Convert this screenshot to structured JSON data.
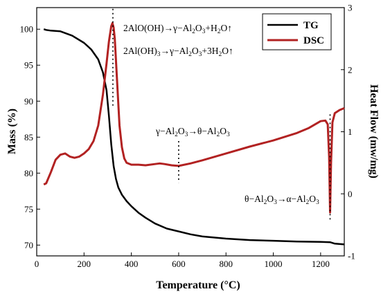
{
  "chart_data": {
    "type": "line",
    "xlabel": "Temperature (°C)",
    "ylabel_left": "Mass (%)",
    "ylabel_right": "Heat Flow (mw/mg)",
    "xlim": [
      0,
      1300
    ],
    "ylim_left": [
      68.5,
      103
    ],
    "ylim_right": [
      -1,
      3
    ],
    "x_ticks": [
      0,
      200,
      400,
      600,
      800,
      1000,
      1200
    ],
    "y_left_ticks": [
      70,
      75,
      80,
      85,
      90,
      95,
      100
    ],
    "y_right_ticks": [
      -1,
      0,
      1,
      2,
      3
    ],
    "legend_position": "top-right",
    "series": [
      {
        "name": "TG",
        "axis": "left",
        "color": "#000000",
        "x": [
          30,
          40,
          60,
          100,
          150,
          200,
          230,
          260,
          280,
          295,
          305,
          315,
          325,
          335,
          345,
          360,
          380,
          400,
          430,
          460,
          500,
          550,
          600,
          650,
          700,
          800,
          900,
          1000,
          1100,
          1200,
          1240,
          1260,
          1300
        ],
        "y": [
          100,
          99.9,
          99.8,
          99.7,
          99.1,
          98.1,
          97.2,
          95.8,
          94.0,
          91.5,
          88.0,
          84.0,
          81.0,
          79.2,
          78.0,
          77.0,
          76.1,
          75.4,
          74.5,
          73.8,
          73.0,
          72.3,
          71.9,
          71.5,
          71.2,
          70.9,
          70.7,
          70.6,
          70.5,
          70.45,
          70.4,
          70.2,
          70.1
        ]
      },
      {
        "name": "DSC",
        "axis": "right",
        "color": "#b22222",
        "x": [
          30,
          40,
          60,
          80,
          100,
          120,
          140,
          160,
          180,
          200,
          220,
          240,
          260,
          280,
          295,
          305,
          315,
          320,
          325,
          330,
          340,
          350,
          360,
          370,
          380,
          400,
          430,
          460,
          500,
          520,
          540,
          570,
          600,
          650,
          700,
          800,
          900,
          1000,
          1100,
          1150,
          1200,
          1220,
          1230,
          1236,
          1240,
          1244,
          1250,
          1260,
          1280,
          1300
        ],
        "y": [
          0.15,
          0.17,
          0.35,
          0.55,
          0.63,
          0.65,
          0.6,
          0.58,
          0.6,
          0.65,
          0.72,
          0.85,
          1.1,
          1.6,
          2.1,
          2.45,
          2.7,
          2.75,
          2.68,
          2.5,
          1.8,
          1.1,
          0.75,
          0.57,
          0.5,
          0.47,
          0.47,
          0.46,
          0.48,
          0.49,
          0.48,
          0.46,
          0.45,
          0.49,
          0.54,
          0.65,
          0.76,
          0.86,
          0.98,
          1.06,
          1.17,
          1.18,
          1.12,
          0.6,
          -0.3,
          0.5,
          1.15,
          1.3,
          1.35,
          1.38
        ]
      }
    ],
    "annotations": [
      {
        "id": "ann1",
        "x": 322,
        "ymin": 1.4,
        "ymax": 2.98
      },
      {
        "id": "ann2",
        "x": 600,
        "ymin": 0.18,
        "ymax": 0.85
      },
      {
        "id": "ann3",
        "x": 1240,
        "ymin": -0.42,
        "ymax": 1.28
      }
    ]
  },
  "annotation_text": {
    "ann1": "2AlO(OH)→γ−Al2O3+H2O↑",
    "ann1_parts": [
      "2AlO(OH)→γ−Al",
      "2",
      "O",
      "3",
      "+H",
      "2",
      "O↑"
    ],
    "ann2_1": "2Al(OH)3→γ−Al2O3+3H2O↑",
    "ann2_1_parts": [
      "2Al(OH)",
      "3",
      "→γ−Al",
      "2",
      "O",
      "3",
      "+3H",
      "2",
      "O↑"
    ],
    "ann3": "γ−Al2O3→θ−Al2O3",
    "ann3_parts": [
      "γ−Al",
      "2",
      "O",
      "3",
      "→θ−Al",
      "2",
      "O",
      "3"
    ],
    "ann4": "θ−Al2O3→α−Al2O3",
    "ann4_parts": [
      "θ−Al",
      "2",
      "O",
      "3",
      "→α−Al",
      "2",
      "O",
      "3"
    ]
  }
}
